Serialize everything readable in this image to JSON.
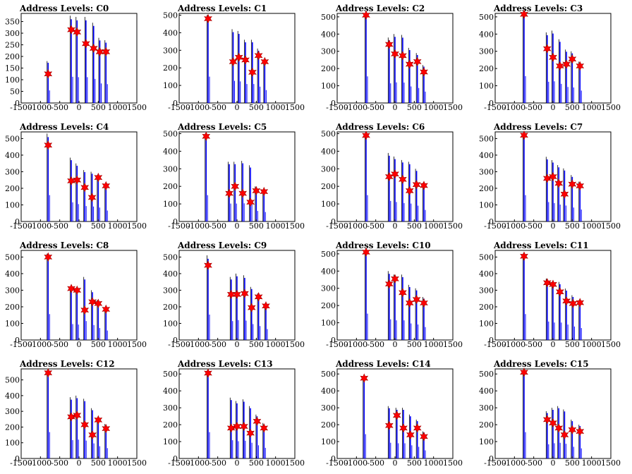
{
  "figure": {
    "rows": 4,
    "cols": 4,
    "x_ticks": [
      -1500,
      -1000,
      -500,
      0,
      500,
      1000,
      1500
    ],
    "x_range": [
      -1500,
      1500
    ],
    "colors": {
      "bar": "#0000ff",
      "peak_bar": "#000000",
      "marker": "#ff0000",
      "marker_edge": "#a00000",
      "axis": "#000000"
    }
  },
  "chart_data": [
    {
      "title": "Address Levels: C0",
      "type": "bar",
      "ylim": [
        0,
        385
      ],
      "y_ticks": [
        0,
        50,
        100,
        150,
        200,
        250,
        300,
        350
      ],
      "spike_x": [
        -800,
        -200,
        -50,
        180,
        380,
        540,
        700
      ],
      "bar_height": [
        180,
        375,
        370,
        370,
        345,
        280,
        270
      ],
      "marker_x": [
        -800,
        -200,
        -50,
        180,
        380,
        540,
        700
      ],
      "marker_y": [
        125,
        315,
        305,
        255,
        235,
        220,
        220
      ]
    },
    {
      "title": "Address Levels: C1",
      "type": "bar",
      "ylim": [
        0,
        510
      ],
      "y_ticks": [
        0,
        100,
        200,
        300,
        400,
        500
      ],
      "spike_x": [
        -750,
        -100,
        50,
        220,
        400,
        560,
        720
      ],
      "bar_height": [
        500,
        420,
        410,
        360,
        360,
        310,
        245
      ],
      "marker_x": [
        -750,
        -100,
        50,
        220,
        400,
        560,
        720
      ],
      "marker_y": [
        480,
        235,
        260,
        245,
        175,
        270,
        235
      ]
    },
    {
      "title": "Address Levels: C2",
      "type": "bar",
      "ylim": [
        0,
        520
      ],
      "y_ticks": [
        0,
        100,
        200,
        300,
        400,
        500
      ],
      "spike_x": [
        -750,
        -150,
        0,
        200,
        380,
        580,
        750
      ],
      "bar_height": [
        515,
        380,
        400,
        395,
        320,
        290,
        220
      ],
      "marker_x": [
        -750,
        -150,
        0,
        200,
        380,
        580,
        750
      ],
      "marker_y": [
        510,
        340,
        285,
        275,
        225,
        240,
        180
      ]
    },
    {
      "title": "Address Levels: C3",
      "type": "bar",
      "ylim": [
        0,
        520
      ],
      "y_ticks": [
        0,
        100,
        200,
        300,
        400,
        500
      ],
      "spike_x": [
        -750,
        -150,
        0,
        180,
        350,
        500,
        700
      ],
      "bar_height": [
        520,
        410,
        420,
        370,
        310,
        300,
        240
      ],
      "marker_x": [
        -750,
        -150,
        0,
        180,
        350,
        500,
        700
      ],
      "marker_y": [
        515,
        315,
        265,
        215,
        225,
        255,
        215
      ]
    },
    {
      "title": "Address Levels: C4",
      "type": "bar",
      "ylim": [
        0,
        540
      ],
      "y_ticks": [
        0,
        100,
        200,
        300,
        400,
        500
      ],
      "spike_x": [
        -800,
        -200,
        -50,
        150,
        340,
        500,
        700
      ],
      "bar_height": [
        530,
        385,
        350,
        310,
        300,
        280,
        220
      ],
      "marker_x": [
        -800,
        -200,
        -50,
        150,
        340,
        500,
        700
      ],
      "marker_y": [
        460,
        245,
        250,
        205,
        145,
        265,
        215
      ]
    },
    {
      "title": "Address Levels: C5",
      "type": "bar",
      "ylim": [
        0,
        510
      ],
      "y_ticks": [
        0,
        100,
        200,
        300,
        400,
        500
      ],
      "spike_x": [
        -800,
        -200,
        -50,
        150,
        350,
        500,
        700
      ],
      "bar_height": [
        500,
        340,
        340,
        345,
        320,
        200,
        180
      ],
      "marker_x": [
        -800,
        -200,
        -50,
        150,
        350,
        500,
        700
      ],
      "marker_y": [
        485,
        160,
        200,
        160,
        110,
        175,
        170
      ]
    },
    {
      "title": "Address Levels: C6",
      "type": "bar",
      "ylim": [
        0,
        510
      ],
      "y_ticks": [
        0,
        100,
        200,
        300,
        400,
        500
      ],
      "spike_x": [
        -750,
        -150,
        0,
        200,
        380,
        560,
        750
      ],
      "bar_height": [
        500,
        390,
        370,
        350,
        340,
        300,
        220
      ],
      "marker_x": [
        -750,
        -150,
        0,
        200,
        380,
        560,
        750
      ],
      "marker_y": [
        490,
        255,
        270,
        240,
        175,
        210,
        205
      ]
    },
    {
      "title": "Address Levels: C7",
      "type": "bar",
      "ylim": [
        0,
        540
      ],
      "y_ticks": [
        0,
        100,
        200,
        300,
        400,
        500
      ],
      "spike_x": [
        -750,
        -150,
        0,
        150,
        300,
        500,
        700
      ],
      "bar_height": [
        530,
        390,
        370,
        340,
        320,
        280,
        240
      ],
      "marker_x": [
        -750,
        -150,
        0,
        150,
        300,
        500,
        700
      ],
      "marker_y": [
        520,
        260,
        270,
        230,
        165,
        225,
        215
      ]
    },
    {
      "title": "Address Levels: C8",
      "type": "bar",
      "ylim": [
        0,
        540
      ],
      "y_ticks": [
        0,
        100,
        200,
        300,
        400,
        500
      ],
      "spike_x": [
        -800,
        -200,
        -50,
        150,
        350,
        500,
        700
      ],
      "bar_height": [
        520,
        320,
        310,
        380,
        300,
        240,
        190
      ],
      "marker_x": [
        -800,
        -200,
        -50,
        150,
        350,
        500,
        700
      ],
      "marker_y": [
        500,
        310,
        300,
        180,
        230,
        220,
        185
      ]
    },
    {
      "title": "Address Levels: C9",
      "type": "bar",
      "ylim": [
        0,
        540
      ],
      "y_ticks": [
        0,
        100,
        200,
        300,
        400,
        500
      ],
      "spike_x": [
        -750,
        -150,
        0,
        200,
        380,
        560,
        750
      ],
      "bar_height": [
        510,
        380,
        400,
        390,
        320,
        280,
        220
      ],
      "marker_x": [
        -750,
        -150,
        0,
        200,
        380,
        560,
        750
      ],
      "marker_y": [
        450,
        275,
        275,
        280,
        195,
        260,
        205
      ]
    },
    {
      "title": "Address Levels: C10",
      "type": "bar",
      "ylim": [
        0,
        520
      ],
      "y_ticks": [
        0,
        100,
        200,
        300,
        400,
        500
      ],
      "spike_x": [
        -750,
        -150,
        0,
        200,
        380,
        560,
        750
      ],
      "bar_height": [
        510,
        400,
        380,
        380,
        320,
        300,
        250
      ],
      "marker_x": [
        -750,
        -150,
        0,
        200,
        380,
        560,
        750
      ],
      "marker_y": [
        510,
        325,
        355,
        275,
        215,
        235,
        215
      ]
    },
    {
      "title": "Address Levels: C11",
      "type": "bar",
      "ylim": [
        0,
        540
      ],
      "y_ticks": [
        0,
        100,
        200,
        300,
        400,
        500
      ],
      "spike_x": [
        -750,
        -150,
        0,
        180,
        350,
        520,
        700
      ],
      "bar_height": [
        520,
        370,
        350,
        350,
        310,
        270,
        240
      ],
      "marker_x": [
        -750,
        -150,
        0,
        180,
        350,
        520,
        700
      ],
      "marker_y": [
        505,
        345,
        335,
        290,
        235,
        220,
        225
      ]
    },
    {
      "title": "Address Levels: C12",
      "type": "bar",
      "ylim": [
        0,
        570
      ],
      "y_ticks": [
        0,
        100,
        200,
        300,
        400,
        500
      ],
      "spike_x": [
        -800,
        -200,
        -50,
        150,
        350,
        500,
        700
      ],
      "bar_height": [
        560,
        390,
        400,
        380,
        320,
        260,
        220
      ],
      "marker_x": [
        -800,
        -200,
        -50,
        150,
        350,
        500,
        700
      ],
      "marker_y": [
        545,
        265,
        275,
        215,
        150,
        245,
        190
      ]
    },
    {
      "title": "Address Levels: C13",
      "type": "bar",
      "ylim": [
        0,
        530
      ],
      "y_ticks": [
        0,
        100,
        200,
        300,
        400,
        500
      ],
      "spike_x": [
        -750,
        -150,
        0,
        180,
        350,
        520,
        700
      ],
      "bar_height": [
        520,
        360,
        340,
        350,
        310,
        260,
        210
      ],
      "marker_x": [
        -750,
        -150,
        0,
        180,
        350,
        520,
        700
      ],
      "marker_y": [
        505,
        180,
        190,
        190,
        150,
        220,
        180
      ]
    },
    {
      "title": "Address Levels: C14",
      "type": "bar",
      "ylim": [
        0,
        530
      ],
      "y_ticks": [
        0,
        100,
        200,
        300,
        400,
        500
      ],
      "spike_x": [
        -800,
        -150,
        50,
        220,
        400,
        580,
        750
      ],
      "bar_height": [
        480,
        310,
        300,
        300,
        260,
        230,
        160
      ],
      "marker_x": [
        -800,
        -150,
        50,
        220,
        400,
        580,
        750
      ],
      "marker_y": [
        475,
        195,
        255,
        180,
        140,
        180,
        130
      ]
    },
    {
      "title": "Address Levels: C15",
      "type": "bar",
      "ylim": [
        0,
        530
      ],
      "y_ticks": [
        0,
        100,
        200,
        300,
        400,
        500
      ],
      "spike_x": [
        -750,
        -150,
        0,
        150,
        300,
        500,
        700
      ],
      "bar_height": [
        520,
        280,
        300,
        310,
        290,
        230,
        200
      ],
      "marker_x": [
        -750,
        -150,
        0,
        150,
        300,
        500,
        700
      ],
      "marker_y": [
        510,
        230,
        210,
        180,
        140,
        170,
        160
      ]
    }
  ]
}
